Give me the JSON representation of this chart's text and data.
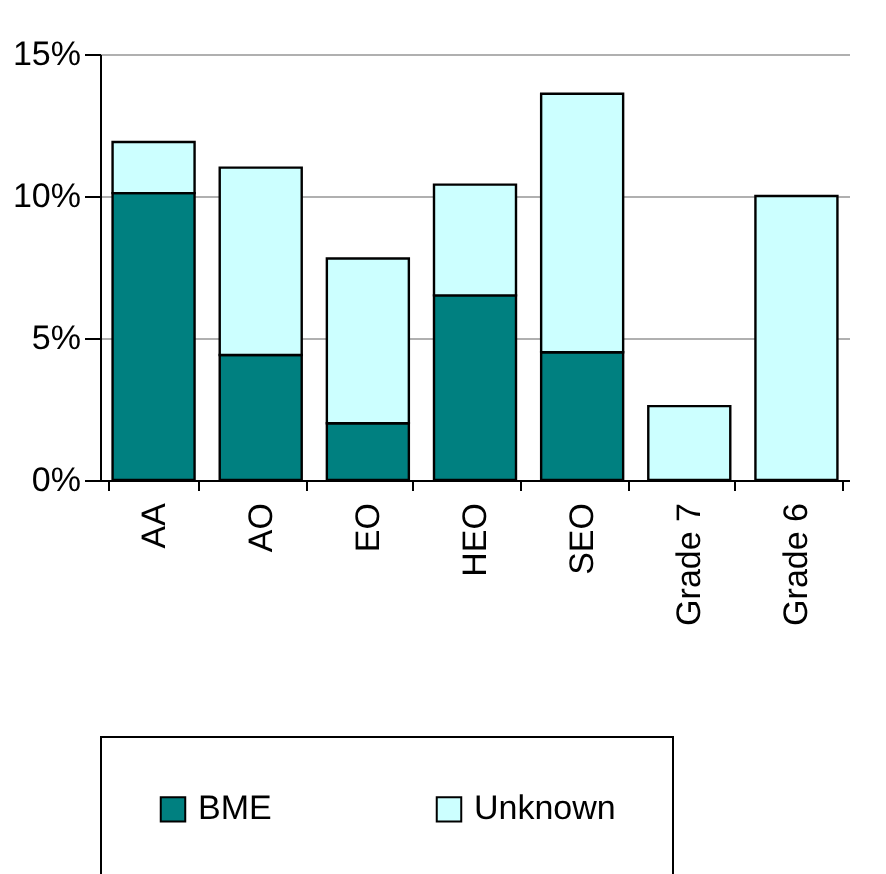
{
  "chart_data": {
    "type": "bar",
    "stacked": true,
    "categories": [
      "AA",
      "AO",
      "EO",
      "HEO",
      "SEO",
      "Grade 7",
      "Grade 6"
    ],
    "series": [
      {
        "name": "BME",
        "color": "#008080",
        "values": [
          10.1,
          4.4,
          2.0,
          6.5,
          4.5,
          0,
          0
        ]
      },
      {
        "name": "Unknown",
        "color": "#ccffff",
        "values": [
          1.8,
          6.6,
          5.8,
          3.9,
          9.1,
          2.6,
          10.0
        ]
      }
    ],
    "ylim": [
      0,
      15
    ],
    "yticks": [
      {
        "value": 0,
        "label": "0%"
      },
      {
        "value": 5,
        "label": "5%"
      },
      {
        "value": 10,
        "label": "10%"
      },
      {
        "value": 15,
        "label": "15%"
      }
    ],
    "grid": "y",
    "legend": "bottom"
  }
}
